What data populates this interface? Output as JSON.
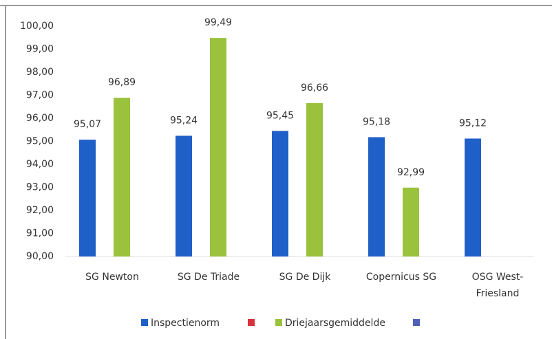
{
  "chart_data": {
    "type": "bar",
    "categories": [
      "SG Newton",
      "SG De Triade",
      "SG De Dijk",
      "Copernicus SG",
      "OSG West-Friesland"
    ],
    "series": [
      {
        "name": "Inspectienorm",
        "color": "#1f5fc8",
        "values": [
          95.07,
          95.24,
          95.45,
          95.18,
          95.12
        ],
        "value_labels": [
          "95,07",
          "95,24",
          "95,45",
          "95,18",
          "95,12"
        ]
      },
      {
        "name": "Driejaarsgemiddelde",
        "color": "#9bc23c",
        "values": [
          96.89,
          99.49,
          96.66,
          92.99,
          null
        ],
        "value_labels": [
          "96,89",
          "99,49",
          "96,66",
          "92,99",
          null
        ]
      }
    ],
    "ylim": [
      90,
      100
    ],
    "yticks": [
      {
        "value": 90,
        "label": "90,00"
      },
      {
        "value": 91,
        "label": "91,00"
      },
      {
        "value": 92,
        "label": "92,00"
      },
      {
        "value": 93,
        "label": "93,00"
      },
      {
        "value": 94,
        "label": "94,00"
      },
      {
        "value": 95,
        "label": "95,00"
      },
      {
        "value": 96,
        "label": "96,00"
      },
      {
        "value": 97,
        "label": "97,00"
      },
      {
        "value": 98,
        "label": "98,00"
      },
      {
        "value": 99,
        "label": "99,00"
      },
      {
        "value": 100,
        "label": "100,00"
      }
    ],
    "grid": false
  }
}
